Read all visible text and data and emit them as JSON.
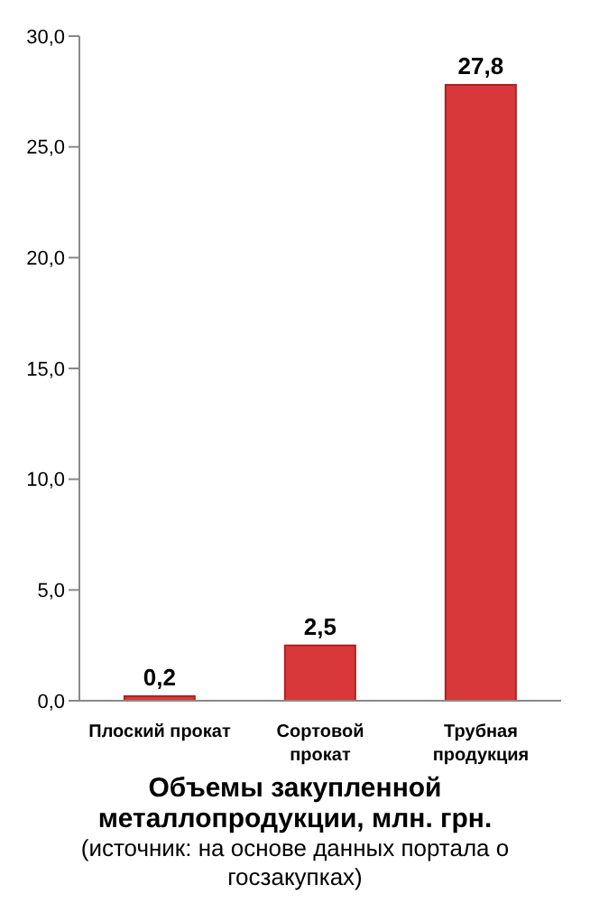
{
  "chart_data": {
    "type": "bar",
    "title": "Объемы закупленной металлопродукции, млн. грн.",
    "annotations": [
      "(источник: на основе данных портала о госзакупках)"
    ],
    "categories": [
      "Плоский  прокат",
      "Сортовой прокат",
      "Трубная продукция"
    ],
    "values": [
      0.2,
      2.5,
      27.8
    ],
    "color": "#d9383a",
    "value_labels": [
      "0,2",
      "2,5",
      "27,8"
    ],
    "ylim": [
      0,
      30
    ],
    "yticks": [
      {
        "value": 0,
        "label": "0,0"
      },
      {
        "value": 5,
        "label": "5,0"
      },
      {
        "value": 10,
        "label": "10,0"
      },
      {
        "value": 15,
        "label": "15,0"
      },
      {
        "value": 20,
        "label": "20,0"
      },
      {
        "value": 25,
        "label": "25,0"
      },
      {
        "value": 30,
        "label": "30,0"
      }
    ],
    "grid": false,
    "legend": false
  }
}
